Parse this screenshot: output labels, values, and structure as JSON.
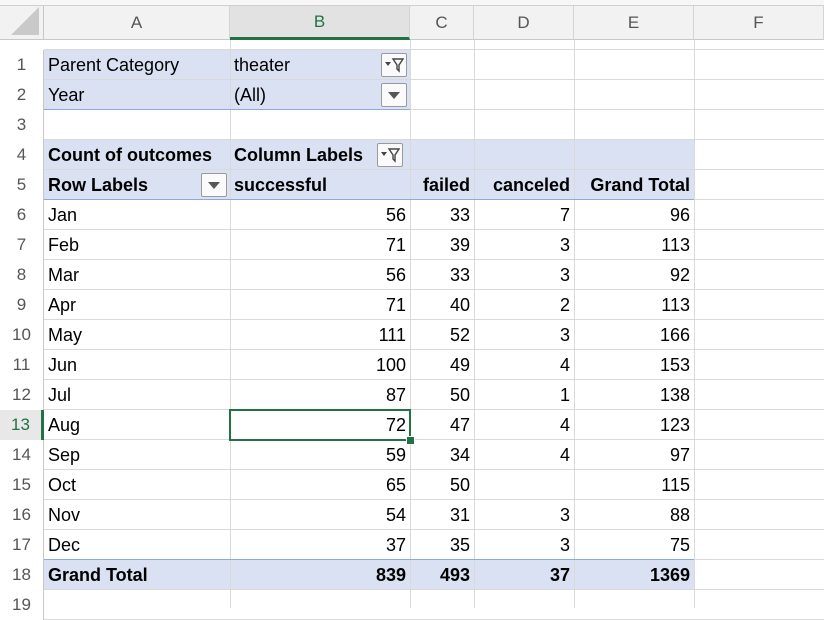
{
  "columns": [
    {
      "letter": "A",
      "selected": false
    },
    {
      "letter": "B",
      "selected": true
    },
    {
      "letter": "C",
      "selected": false
    },
    {
      "letter": "D",
      "selected": false
    },
    {
      "letter": "E",
      "selected": false
    },
    {
      "letter": "F",
      "selected": false
    }
  ],
  "row_numbers": [
    "1",
    "2",
    "3",
    "4",
    "5",
    "6",
    "7",
    "8",
    "9",
    "10",
    "11",
    "12",
    "13",
    "14",
    "15",
    "16",
    "17",
    "18",
    "19"
  ],
  "selected_row": "13",
  "filters": [
    {
      "label": "Parent Category",
      "value": "theater",
      "icon": "filter-dropdown-icon"
    },
    {
      "label": "Year",
      "value": "(All)",
      "icon": "dropdown-arrow-icon"
    }
  ],
  "pivot": {
    "value_label": "Count of outcomes",
    "column_labels": "Column Labels",
    "row_labels": "Row Labels",
    "headers": [
      "successful",
      "failed",
      "canceled",
      "Grand Total"
    ],
    "rows": [
      {
        "label": "Jan",
        "successful": "56",
        "failed": "33",
        "canceled": "7",
        "total": "96"
      },
      {
        "label": "Feb",
        "successful": "71",
        "failed": "39",
        "canceled": "3",
        "total": "113"
      },
      {
        "label": "Mar",
        "successful": "56",
        "failed": "33",
        "canceled": "3",
        "total": "92"
      },
      {
        "label": "Apr",
        "successful": "71",
        "failed": "40",
        "canceled": "2",
        "total": "113"
      },
      {
        "label": "May",
        "successful": "111",
        "failed": "52",
        "canceled": "3",
        "total": "166"
      },
      {
        "label": "Jun",
        "successful": "100",
        "failed": "49",
        "canceled": "4",
        "total": "153"
      },
      {
        "label": "Jul",
        "successful": "87",
        "failed": "50",
        "canceled": "1",
        "total": "138"
      },
      {
        "label": "Aug",
        "successful": "72",
        "failed": "47",
        "canceled": "4",
        "total": "123"
      },
      {
        "label": "Sep",
        "successful": "59",
        "failed": "34",
        "canceled": "4",
        "total": "97"
      },
      {
        "label": "Oct",
        "successful": "65",
        "failed": "50",
        "canceled": "",
        "total": "115"
      },
      {
        "label": "Nov",
        "successful": "54",
        "failed": "31",
        "canceled": "3",
        "total": "88"
      },
      {
        "label": "Dec",
        "successful": "37",
        "failed": "35",
        "canceled": "3",
        "total": "75"
      }
    ],
    "grand_total": {
      "label": "Grand Total",
      "successful": "839",
      "failed": "493",
      "canceled": "37",
      "total": "1369"
    }
  },
  "colors": {
    "accent": "#217346",
    "pivot_band": "#d9e1f2",
    "pivot_line": "#8ea9db"
  }
}
